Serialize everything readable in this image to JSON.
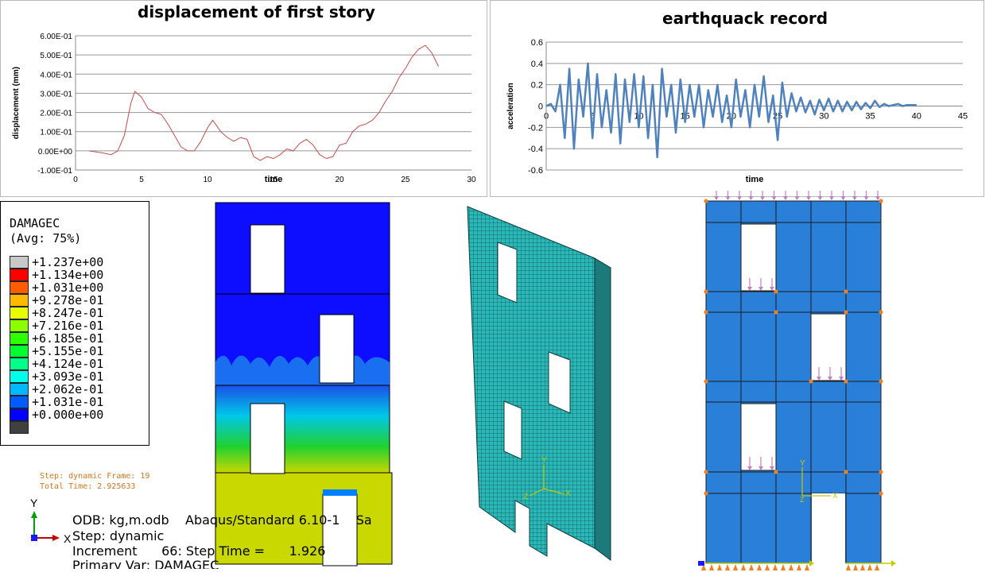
{
  "charts": {
    "displacement": {
      "title": "displacement of first story",
      "xlabel": "time",
      "ylabel": "displacement (mm)",
      "x_ticks": [
        "0",
        "5",
        "10",
        "15",
        "20",
        "25",
        "30"
      ],
      "y_ticks": [
        "6.00E-01",
        "5.00E-01",
        "4.00E-01",
        "3.00E-01",
        "2.00E-01",
        "1.00E-01",
        "0.00E+00",
        "-1.00E-01"
      ]
    },
    "earthquake": {
      "title": "earthquack record",
      "xlabel": "time",
      "ylabel": "acceleration",
      "x_ticks": [
        "0",
        "5",
        "10",
        "15",
        "20",
        "25",
        "30",
        "35",
        "40",
        "45"
      ],
      "y_ticks": [
        "0.6",
        "0.4",
        "0.2",
        "0",
        "-0.2",
        "-0.4",
        "-0.6"
      ]
    }
  },
  "chart_data": [
    {
      "type": "line",
      "title": "displacement of first story",
      "xlabel": "time",
      "ylabel": "displacement (mm)",
      "xlim": [
        0,
        30
      ],
      "ylim": [
        -0.1,
        0.6
      ],
      "color": "#c0504d",
      "series": [
        {
          "x": [
            1,
            2,
            2.7,
            3.2,
            3.7,
            4.2,
            4.5,
            5.0,
            5.5,
            6.0,
            6.5,
            7.0,
            7.5,
            8.0,
            8.5,
            9.0,
            9.5,
            10.0,
            10.4,
            11.0,
            11.5,
            12.0,
            12.5,
            13.0,
            13.5,
            14.0,
            14.5,
            15.0,
            15.5,
            16.0,
            16.5,
            17.0,
            17.5,
            18.0,
            18.5,
            19.0,
            19.5,
            20.0,
            20.5,
            21.0,
            21.5,
            22.0,
            22.5,
            23.0,
            23.5,
            24.0,
            24.5,
            25.0,
            25.5,
            26.0,
            26.5,
            27.0,
            27.5
          ],
          "y": [
            0.0,
            -0.01,
            -0.02,
            0.0,
            0.08,
            0.25,
            0.31,
            0.28,
            0.22,
            0.2,
            0.19,
            0.14,
            0.08,
            0.02,
            0.0,
            0.0,
            0.05,
            0.12,
            0.16,
            0.1,
            0.07,
            0.05,
            0.07,
            0.06,
            -0.03,
            -0.05,
            -0.03,
            -0.04,
            -0.02,
            0.01,
            0.0,
            0.04,
            0.06,
            0.03,
            -0.02,
            -0.04,
            -0.03,
            0.03,
            0.04,
            0.1,
            0.13,
            0.14,
            0.16,
            0.2,
            0.26,
            0.31,
            0.38,
            0.43,
            0.49,
            0.53,
            0.55,
            0.51,
            0.44
          ]
        }
      ]
    },
    {
      "type": "line",
      "title": "earthquack record",
      "xlabel": "time",
      "ylabel": "acceleration",
      "xlim": [
        0,
        45
      ],
      "ylim": [
        -0.6,
        0.6
      ],
      "color": "#4f81bd",
      "series": [
        {
          "x": [
            0,
            0.5,
            1.0,
            1.5,
            2.0,
            2.5,
            3.0,
            3.5,
            4.0,
            4.5,
            5.0,
            5.5,
            6.0,
            6.5,
            7.0,
            7.5,
            8.0,
            8.5,
            9.0,
            9.5,
            10.0,
            10.5,
            11.0,
            11.5,
            12.0,
            12.5,
            13.0,
            13.5,
            14.0,
            14.5,
            15.0,
            15.5,
            16.0,
            16.5,
            17.0,
            17.5,
            18.0,
            18.5,
            19.0,
            19.5,
            20.0,
            20.5,
            21.0,
            21.5,
            22.0,
            22.5,
            23.0,
            23.5,
            24.0,
            24.5,
            25.0,
            25.5,
            26.0,
            26.5,
            27.0,
            27.5,
            28.0,
            28.5,
            29.0,
            29.5,
            30.0,
            30.5,
            31.0,
            31.5,
            32.0,
            32.5,
            33.0,
            33.5,
            34.0,
            34.5,
            35.0,
            35.5,
            36.0,
            36.5,
            37.0,
            37.5,
            38.0,
            38.5,
            39.0,
            39.5,
            40.0
          ],
          "y": [
            0,
            0.02,
            -0.05,
            0.2,
            -0.3,
            0.35,
            -0.4,
            0.25,
            -0.1,
            0.4,
            -0.3,
            0.3,
            -0.2,
            0.15,
            -0.25,
            0.3,
            -0.35,
            0.25,
            -0.15,
            0.3,
            -0.2,
            0.28,
            -0.3,
            0.2,
            -0.48,
            0.35,
            -0.1,
            0.2,
            -0.25,
            0.25,
            -0.15,
            0.2,
            -0.1,
            0.2,
            -0.2,
            0.15,
            -0.1,
            0.2,
            -0.15,
            0.1,
            -0.2,
            0.25,
            -0.1,
            0.15,
            -0.2,
            0.2,
            -0.1,
            0.28,
            -0.15,
            0.1,
            -0.32,
            0.22,
            -0.1,
            0.12,
            -0.05,
            0.08,
            -0.06,
            0.05,
            -0.08,
            0.06,
            -0.04,
            0.07,
            -0.05,
            0.05,
            -0.05,
            0.04,
            -0.04,
            0.04,
            -0.03,
            0.03,
            -0.02,
            0.05,
            -0.01,
            0.02,
            0.0,
            0.01,
            0.02,
            0.0,
            0.01,
            0.01,
            0.01
          ]
        }
      ]
    }
  ],
  "legend": {
    "title": "DAMAGEC",
    "subtitle": "(Avg: 75%)",
    "entries": [
      {
        "label": "+1.237e+00",
        "color": "#c8c8c8"
      },
      {
        "label": "+1.134e+00",
        "color": "#ff0000"
      },
      {
        "label": "+1.031e+00",
        "color": "#ff5c00"
      },
      {
        "label": "+9.278e-01",
        "color": "#ffb900"
      },
      {
        "label": "+8.247e-01",
        "color": "#e8ff00"
      },
      {
        "label": "+7.216e-01",
        "color": "#8bff00"
      },
      {
        "label": "+6.185e-01",
        "color": "#2eff00"
      },
      {
        "label": "+5.155e-01",
        "color": "#00ff2e"
      },
      {
        "label": "+4.124e-01",
        "color": "#00ff8b"
      },
      {
        "label": "+3.093e-01",
        "color": "#00ffe8"
      },
      {
        "label": "+2.062e-01",
        "color": "#00b9ff"
      },
      {
        "label": "+1.031e-01",
        "color": "#005cff"
      },
      {
        "label": "+0.000e+00",
        "color": "#0000ff"
      },
      {
        "label": "",
        "color": "#404040"
      }
    ]
  },
  "frame_info": {
    "line1": "Step: dynamic  Frame: 19",
    "line2": "Total Time: 2.925633"
  },
  "axis_triad": {
    "y": "Y",
    "x": "X"
  },
  "odb_info": {
    "line1": "ODB: kg,m.odb    Abaqus/Standard 6.10-1    Sa",
    "line2": "Step: dynamic",
    "line3": "Increment      66: Step Time =      1.926",
    "line4": "Primary Var: DAMAGEC"
  },
  "triad_labels": {
    "mesh_y": "Y",
    "mesh_x": "X",
    "mesh_z": "Z",
    "bc_y": "Y",
    "bc_x": "X",
    "bc_z": "Z"
  },
  "colors": {
    "contour_blue": "#0000ff",
    "contour_yellow": "#c8d800",
    "mesh_teal": "#2ab8b8",
    "wall_blue": "#2a7fd8",
    "load_arrow": "#c080c0",
    "node_orange": "#f08020"
  }
}
